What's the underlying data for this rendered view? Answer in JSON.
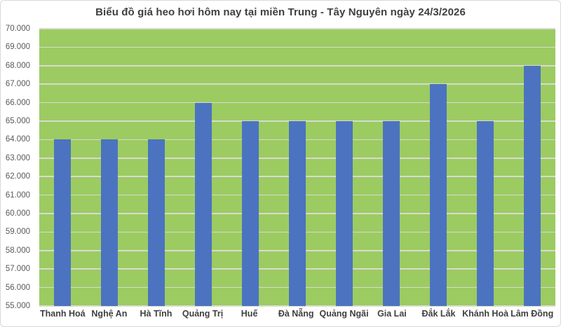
{
  "chart": {
    "title": "Biểu đồ giá heo hơi hôm nay tại miền Trung - Tây Nguyên ngày 24/3/2026"
  },
  "chart_data": {
    "type": "bar",
    "title": "Biểu đồ giá heo hơi hôm nay tại miền Trung - Tây Nguyên ngày 24/3/2026",
    "categories": [
      "Thanh Hoá",
      "Nghệ An",
      "Hà Tĩnh",
      "Quảng Trị",
      "Huế",
      "Đà Nẵng",
      "Quảng Ngãi",
      "Gia Lai",
      "Đắk Lắk",
      "Khánh Hoà",
      "Lâm Đồng"
    ],
    "values": [
      64000,
      64000,
      64000,
      66000,
      65000,
      65000,
      65000,
      65000,
      67000,
      65000,
      68000
    ],
    "xlabel": "",
    "ylabel": "",
    "ylim": [
      55000,
      70000
    ],
    "y_tick_step": 1000,
    "y_tick_labels": [
      "55.000",
      "56.000",
      "57.000",
      "58.000",
      "59.000",
      "60.000",
      "61.000",
      "62.000",
      "63.000",
      "64.000",
      "65.000",
      "66.000",
      "67.000",
      "68.000",
      "69.000",
      "70.000"
    ],
    "grid": true,
    "legend": "none",
    "colors": {
      "bar": "#4c73bf",
      "plot_background": "#9ccb62",
      "gridline": "#d7dbce",
      "title_text": "#404040",
      "y_label_text": "#595959",
      "x_label_text": "#3f3f3f",
      "frame_border": "#d9d9d9",
      "frame_background": "#ffffff"
    }
  }
}
